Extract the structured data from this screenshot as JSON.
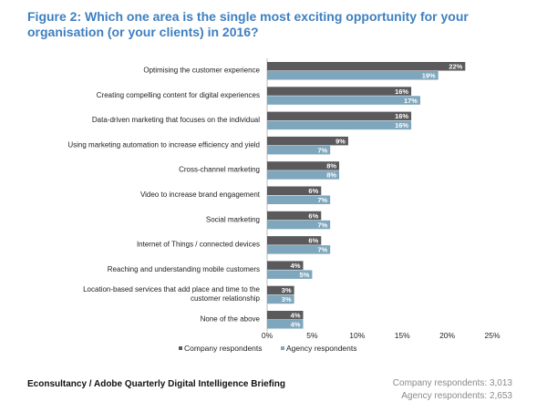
{
  "figure_title": "Figure 2: Which one area is the single most exciting opportunity for your organisation (or your clients) in 2016?",
  "chart_data": {
    "type": "bar",
    "orientation": "horizontal",
    "categories": [
      "Optimising the customer experience",
      "Creating compelling content for digital experiences",
      "Data-driven marketing that focuses on the individual",
      "Using marketing automation to increase efficiency and yield",
      "Cross-channel marketing",
      "Video to increase brand engagement",
      "Social marketing",
      "Internet of Things / connected devices",
      "Reaching and understanding mobile customers",
      "Location-based services that add place and time to the customer relationship",
      "None of the above"
    ],
    "series": [
      {
        "name": "Company respondents",
        "values": [
          22,
          16,
          16,
          9,
          8,
          6,
          6,
          6,
          4,
          3,
          4
        ],
        "color": "#5a5a5c"
      },
      {
        "name": "Agency respondents",
        "values": [
          19,
          17,
          16,
          7,
          8,
          7,
          7,
          7,
          5,
          3,
          4
        ],
        "color": "#7ea6bd"
      }
    ],
    "value_suffix": "%",
    "xlim": [
      0,
      25
    ],
    "xticks": [
      "0%",
      "5%",
      "10%",
      "15%",
      "20%",
      "25%"
    ],
    "legend": "bottom",
    "grid": false
  },
  "footer": {
    "source": "Econsultancy / Adobe Quarterly Digital Intelligence Briefing",
    "company_note": "Company respondents: 3,013",
    "agency_note": "Agency respondents: 2,653"
  }
}
